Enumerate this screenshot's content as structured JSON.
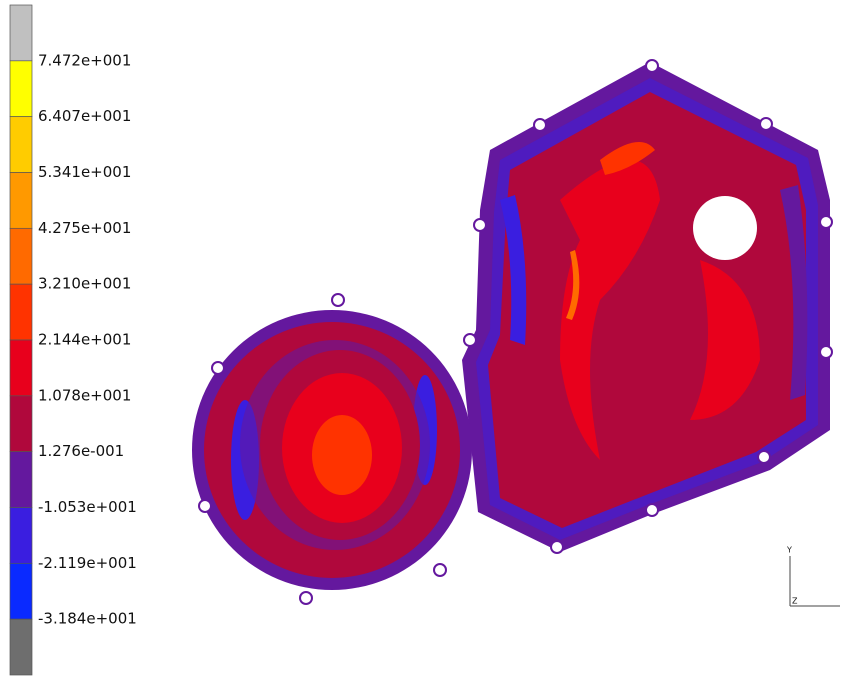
{
  "legend": {
    "labels": [
      "7.472e+001",
      "6.407e+001",
      "5.341e+001",
      "4.275e+001",
      "3.210e+001",
      "2.144e+001",
      "1.078e+001",
      "1.276e-001",
      "-1.053e+001",
      "-2.119e+001",
      "-3.184e+001"
    ],
    "colors": [
      "#c0c0c0",
      "#ffff00",
      "#ffcc00",
      "#ff9900",
      "#ff6a00",
      "#ff3300",
      "#e8001c",
      "#b0083c",
      "#64189e",
      "#3a1ee0",
      "#0a2aff",
      "#6e6e6e"
    ]
  },
  "triad": {
    "y": "Y",
    "z": "Z"
  }
}
